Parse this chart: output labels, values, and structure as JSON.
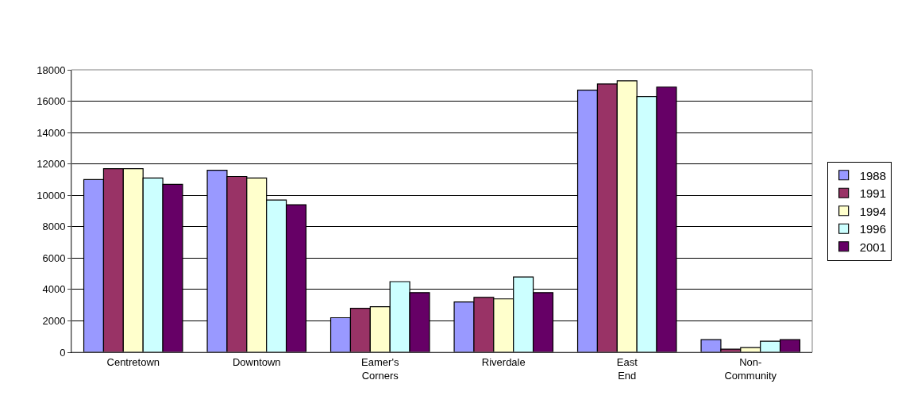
{
  "chart_data": {
    "type": "bar",
    "categories": [
      "Centretown",
      "Downtown",
      "Eamer's Corners",
      "Riverdale",
      "East End",
      "Non-Community"
    ],
    "series": [
      {
        "name": "1988",
        "color": "#9999ff",
        "values": [
          11000,
          11600,
          2200,
          3200,
          16700,
          800
        ]
      },
      {
        "name": "1991",
        "color": "#993366",
        "values": [
          11700,
          11200,
          2800,
          3500,
          17100,
          200
        ]
      },
      {
        "name": "1994",
        "color": "#ffffcc",
        "values": [
          11700,
          11100,
          2900,
          3400,
          17300,
          300
        ]
      },
      {
        "name": "1996",
        "color": "#ccffff",
        "values": [
          11100,
          9700,
          4500,
          4800,
          16300,
          700
        ]
      },
      {
        "name": "2001",
        "color": "#660066",
        "values": [
          10700,
          9400,
          3800,
          3800,
          16900,
          800
        ]
      }
    ],
    "ylim": [
      0,
      18000
    ],
    "yticks": [
      0,
      2000,
      4000,
      6000,
      8000,
      10000,
      12000,
      14000,
      16000,
      18000
    ],
    "grid": "y",
    "legend": "right"
  }
}
